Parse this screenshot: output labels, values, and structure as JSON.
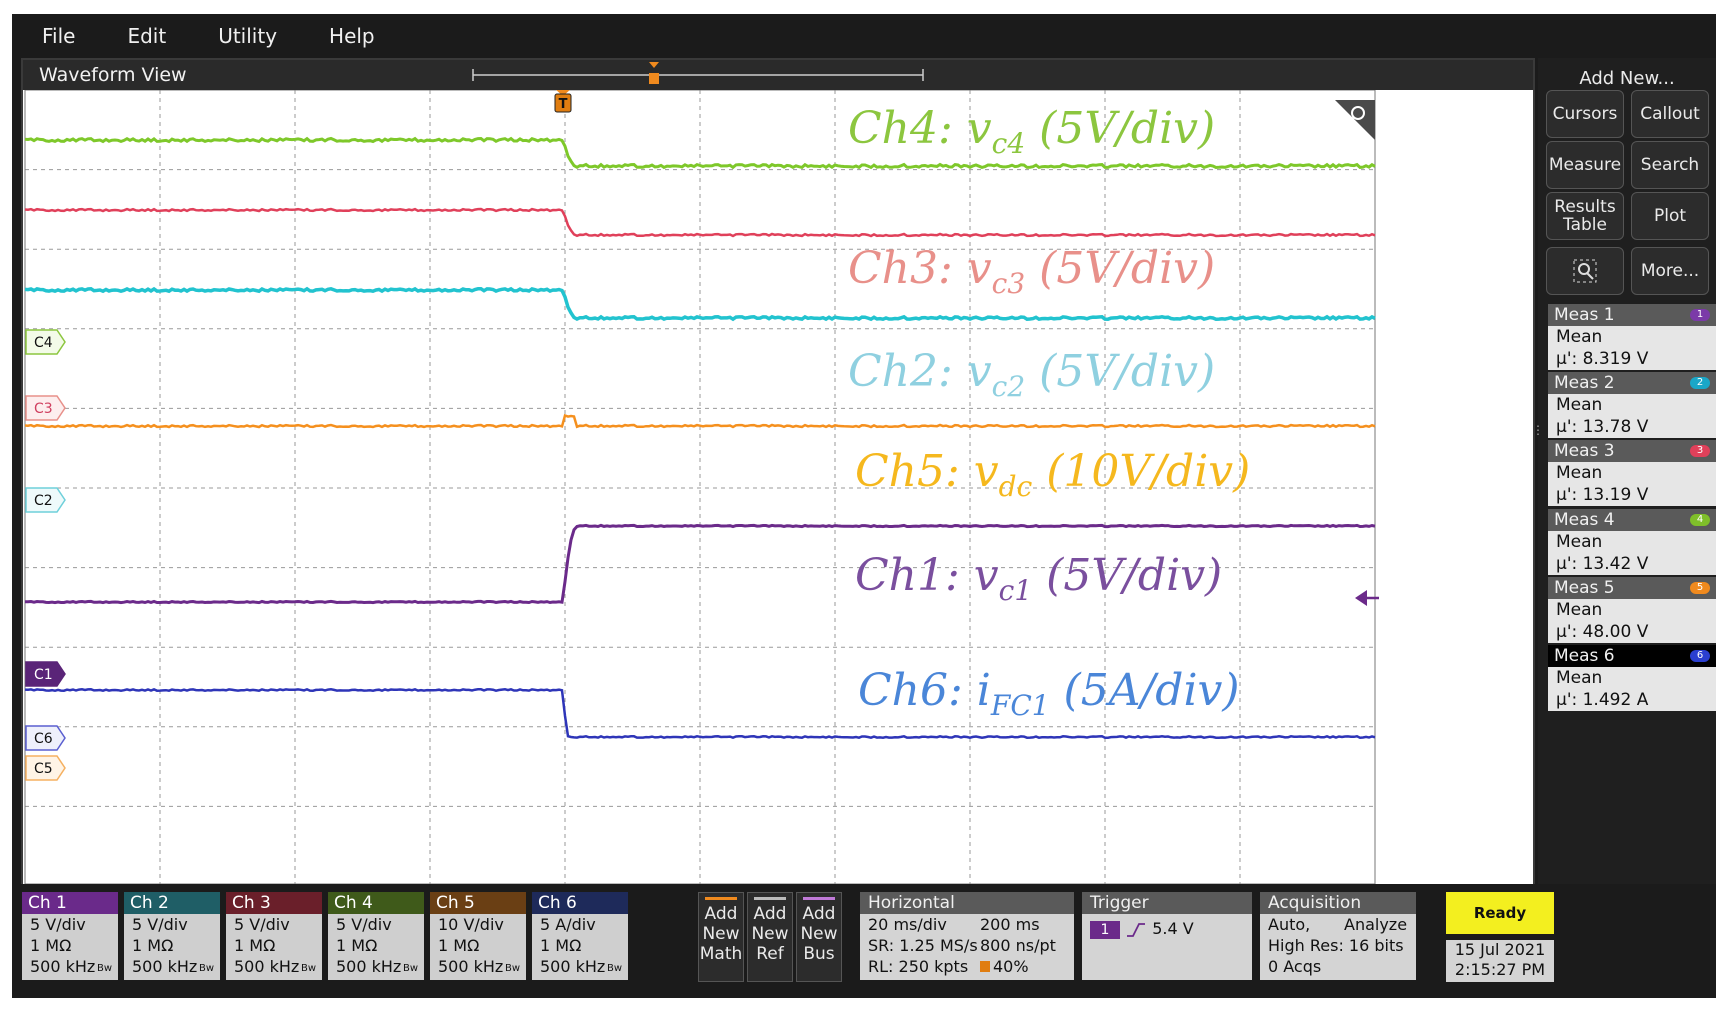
{
  "menu": [
    "File",
    "Edit",
    "Utility",
    "Help"
  ],
  "waveform_view": {
    "title": "Waveform View"
  },
  "channel_markers": [
    "C4",
    "C3",
    "C2",
    "C1",
    "C6",
    "C5"
  ],
  "trigger_marker": "T",
  "annotations": {
    "ch4": {
      "prefix": "Ch4: v",
      "sub": "c4",
      "suffix": " (5V/div)",
      "color": "#8cc63f"
    },
    "ch3": {
      "prefix": "Ch3: v",
      "sub": "c3",
      "suffix": " (5V/div)",
      "color": "#e8908a"
    },
    "ch2": {
      "prefix": "Ch2: v",
      "sub": "c2",
      "suffix": " (5V/div)",
      "color": "#8fd0e0"
    },
    "ch5": {
      "prefix": "Ch5: v",
      "sub": "dc",
      "suffix": " (10V/div)",
      "color": "#f5b81e"
    },
    "ch1": {
      "prefix": "Ch1: v",
      "sub": "c1",
      "suffix": " (5V/div)",
      "color": "#7a4f9e"
    },
    "ch6": {
      "prefix": "Ch6: i",
      "sub": "FC1",
      "suffix": " (5A/div)",
      "color": "#4a86d8"
    }
  },
  "add_new": {
    "title": "Add New...",
    "buttons": [
      "Cursors",
      "Callout",
      "Measure",
      "Search",
      "Results Table",
      "Plot",
      "More..."
    ]
  },
  "measurements": [
    {
      "name": "Meas 1",
      "badge": "1",
      "type": "Mean",
      "value": "µ': 8.319 V",
      "color": "#7b3aa8"
    },
    {
      "name": "Meas 2",
      "badge": "2",
      "type": "Mean",
      "value": "µ': 13.78 V",
      "color": "#1aa7c8"
    },
    {
      "name": "Meas 3",
      "badge": "3",
      "type": "Mean",
      "value": "µ': 13.19 V",
      "color": "#e0405a"
    },
    {
      "name": "Meas 4",
      "badge": "4",
      "type": "Mean",
      "value": "µ': 13.42 V",
      "color": "#7fbf2a"
    },
    {
      "name": "Meas 5",
      "badge": "5",
      "type": "Mean",
      "value": "µ': 48.00 V",
      "color": "#f08a1e"
    },
    {
      "name": "Meas 6",
      "badge": "6",
      "type": "Mean",
      "value": "µ': 1.492 A",
      "color": "#2b3fd0"
    }
  ],
  "channels": [
    {
      "name": "Ch 1",
      "scale": "5 V/div",
      "impedance": "1 MΩ",
      "bw": "500 kHz",
      "color": "#6a2a8a"
    },
    {
      "name": "Ch 2",
      "scale": "5 V/div",
      "impedance": "1 MΩ",
      "bw": "500 kHz",
      "color": "#1f5e66"
    },
    {
      "name": "Ch 3",
      "scale": "5 V/div",
      "impedance": "1 MΩ",
      "bw": "500 kHz",
      "color": "#6a1f2a"
    },
    {
      "name": "Ch 4",
      "scale": "5 V/div",
      "impedance": "1 MΩ",
      "bw": "500 kHz",
      "color": "#3f5a1a"
    },
    {
      "name": "Ch 5",
      "scale": "10 V/div",
      "impedance": "1 MΩ",
      "bw": "500 kHz",
      "color": "#6a3f14"
    },
    {
      "name": "Ch 6",
      "scale": "5 A/div",
      "impedance": "1 MΩ",
      "bw": "500 kHz",
      "color": "#1e2a5a"
    }
  ],
  "bw_mark": "Bw",
  "add_buttons": [
    {
      "lines": [
        "Add",
        "New",
        "Math"
      ],
      "color": "#f08a1e"
    },
    {
      "lines": [
        "Add",
        "New",
        "Ref"
      ],
      "color": "#bbbbbb"
    },
    {
      "lines": [
        "Add",
        "New",
        "Bus"
      ],
      "color": "#c07ad8"
    }
  ],
  "horizontal": {
    "title": "Horizontal",
    "scale": "20 ms/div",
    "position": "200 ms",
    "sr": "SR: 1.25 MS/s",
    "pt": "800 ns/pt",
    "rl": "RL: 250 kpts",
    "trigger_pos": "40%"
  },
  "trigger": {
    "title": "Trigger",
    "source": "1",
    "level": "5.4 V"
  },
  "acquisition": {
    "title": "Acquisition",
    "mode": "Auto,",
    "analyze": "Analyze",
    "res": "High Res: 16 bits",
    "acqs": "0 Acqs"
  },
  "status": {
    "ready": "Ready",
    "date": "15 Jul 2021",
    "time": "2:15:27 PM"
  },
  "trace_colors": {
    "ch4": "#7ec82a",
    "ch3": "#e0405a",
    "ch2": "#22c3cf",
    "ch5": "#f5901e",
    "ch1": "#6b2a8a",
    "ch6": "#2e35b8"
  }
}
